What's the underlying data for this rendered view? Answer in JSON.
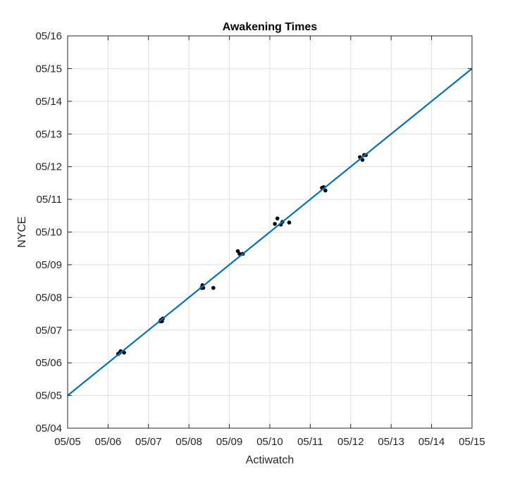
{
  "chart_data": {
    "type": "scatter",
    "title": "Awakening Times",
    "xlabel": "Actiwatch",
    "ylabel": "NYCE",
    "xlim": [
      "05/05",
      "05/15"
    ],
    "ylim": [
      "05/04",
      "05/16"
    ],
    "grid": true,
    "x_tick_labels": [
      "05/05",
      "05/06",
      "05/07",
      "05/08",
      "05/09",
      "05/10",
      "05/11",
      "05/12",
      "05/13",
      "05/14",
      "05/15"
    ],
    "y_tick_labels": [
      "05/04",
      "05/05",
      "05/06",
      "05/07",
      "05/08",
      "05/09",
      "05/10",
      "05/11",
      "05/12",
      "05/13",
      "05/14",
      "05/15",
      "05/16"
    ],
    "series": [
      {
        "type": "scatter",
        "color": "#000000",
        "points": [
          {
            "x": "05/06 06:00",
            "y": "05/06 06:30"
          },
          {
            "x": "05/06 07:00",
            "y": "05/06 07:30"
          },
          {
            "x": "05/06 07:30",
            "y": "05/06 08:30"
          },
          {
            "x": "05/06 09:30",
            "y": "05/06 07:30"
          },
          {
            "x": "05/07 07:00",
            "y": "05/07 06:30"
          },
          {
            "x": "05/07 07:30",
            "y": "05/07 07:30"
          },
          {
            "x": "05/07 08:00",
            "y": "05/07 06:30"
          },
          {
            "x": "05/07 08:30",
            "y": "05/07 08:30"
          },
          {
            "x": "05/08 07:30",
            "y": "05/08 07:00"
          },
          {
            "x": "05/08 08:00",
            "y": "05/08 09:00"
          },
          {
            "x": "05/08 08:30",
            "y": "05/08 07:00"
          },
          {
            "x": "05/08 14:30",
            "y": "05/08 07:00"
          },
          {
            "x": "05/09 05:00",
            "y": "05/09 10:00"
          },
          {
            "x": "05/09 06:00",
            "y": "05/09 08:00"
          },
          {
            "x": "05/09 08:00",
            "y": "05/09 08:00"
          },
          {
            "x": "05/10 03:00",
            "y": "05/10 06:00"
          },
          {
            "x": "05/10 04:30",
            "y": "05/10 10:00"
          },
          {
            "x": "05/10 06:30",
            "y": "05/10 05:30"
          },
          {
            "x": "05/10 07:30",
            "y": "05/10 07:30"
          },
          {
            "x": "05/10 11:30",
            "y": "05/10 07:00"
          },
          {
            "x": "05/11 07:00",
            "y": "05/11 08:30"
          },
          {
            "x": "05/11 08:00",
            "y": "05/11 09:00"
          },
          {
            "x": "05/11 09:00",
            "y": "05/11 06:30"
          },
          {
            "x": "05/12 05:30",
            "y": "05/12 07:00"
          },
          {
            "x": "05/12 07:00",
            "y": "05/12 05:00"
          },
          {
            "x": "05/12 08:00",
            "y": "05/12 08:30"
          },
          {
            "x": "05/12 09:00",
            "y": "05/12 08:30"
          }
        ]
      },
      {
        "type": "line",
        "color": "#0072BD",
        "x": [
          "05/05",
          "05/15"
        ],
        "y": [
          "05/05",
          "05/15"
        ]
      }
    ]
  }
}
